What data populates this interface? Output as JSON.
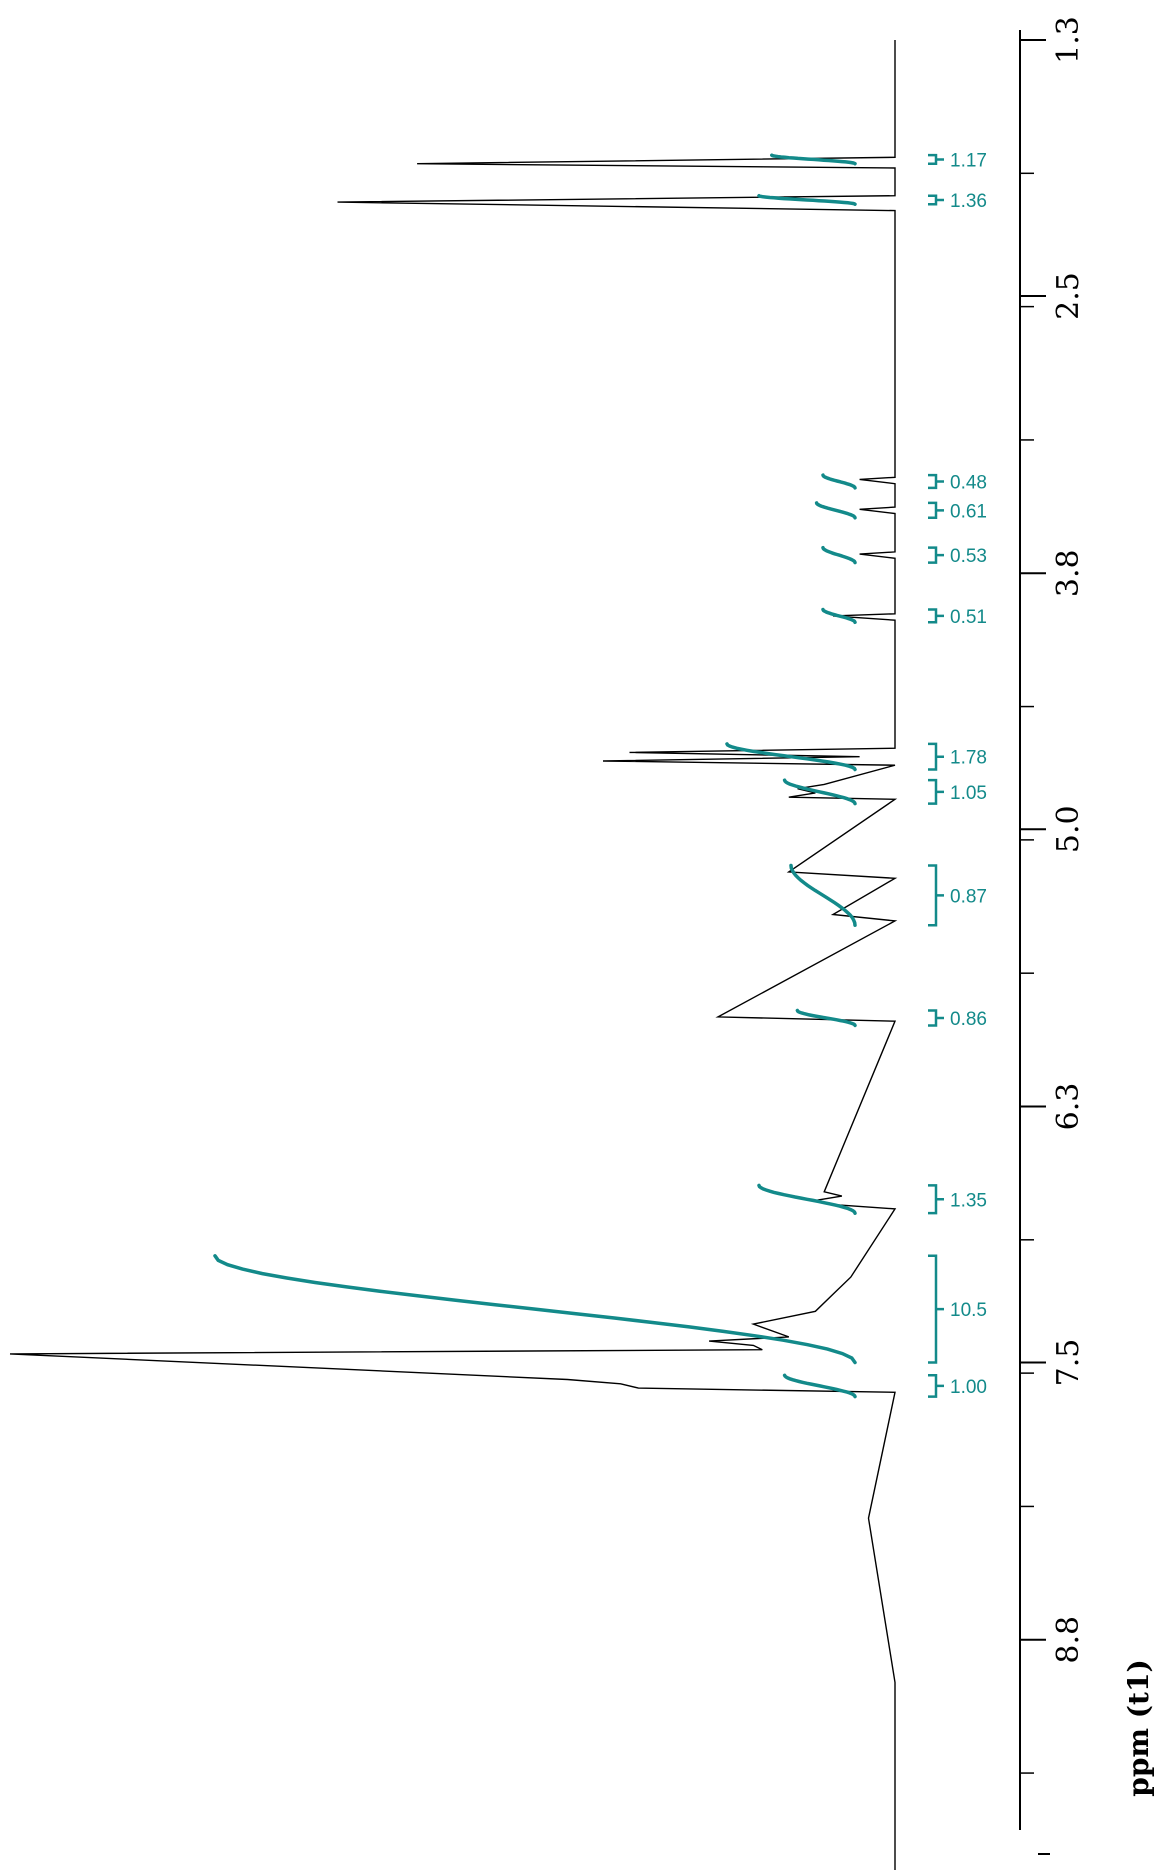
{
  "chart_data": {
    "type": "line",
    "title": "",
    "xlabel": "ppm (t1)",
    "ylabel": "",
    "xlim": [
      1.3,
      10.2
    ],
    "x_ticks": [
      "1.3",
      "2.5",
      "3.8",
      "5.0",
      "6.3",
      "7.5",
      "8.8"
    ],
    "x_tick_values": [
      1.3,
      2.5,
      3.8,
      5.0,
      6.3,
      7.5,
      8.8
    ],
    "series": [
      {
        "x": [
          1.3,
          1.85,
          1.88,
          1.9,
          2.03,
          2.06,
          2.1,
          2.5,
          3.35,
          3.36,
          3.38,
          3.49,
          3.5,
          3.52,
          3.7,
          3.71,
          3.73,
          3.99,
          4.0,
          4.02,
          4.62,
          4.64,
          4.66,
          4.68,
          4.7,
          4.79,
          4.81,
          4.83,
          4.85,
          4.86,
          5.2,
          5.23,
          5.4,
          5.43,
          5.88,
          5.9,
          6.7,
          6.72,
          6.74,
          6.76,
          6.78,
          7.1,
          7.18,
          7.26,
          7.32,
          7.38,
          7.4,
          7.42,
          7.44,
          7.46,
          7.58,
          7.6,
          7.62,
          7.64,
          8.23,
          9.0,
          10.2
        ],
        "y": [
          0.0,
          0.0,
          0.54,
          0.0,
          0.0,
          0.63,
          0.0,
          0.0,
          0.0,
          0.04,
          0.0,
          0.0,
          0.04,
          0.0,
          0.0,
          0.04,
          0.0,
          0.0,
          0.07,
          0.0,
          0.0,
          0.3,
          0.04,
          0.33,
          0.0,
          0.08,
          0.11,
          0.09,
          0.12,
          0.0,
          0.12,
          0.0,
          0.07,
          0.0,
          0.2,
          0.0,
          0.08,
          0.06,
          0.09,
          0.07,
          0.0,
          0.05,
          0.07,
          0.09,
          0.16,
          0.12,
          0.21,
          0.16,
          0.15,
          1.0,
          0.37,
          0.31,
          0.29,
          0.0,
          0.03,
          0.0,
          0.0
        ]
      }
    ],
    "integrals": [
      {
        "label": "1.17",
        "from": 1.84,
        "to": 1.88,
        "curve_start": 0.0,
        "curve_end": 0.13
      },
      {
        "label": "1.36",
        "from": 2.03,
        "to": 2.07,
        "curve_start": 0.0,
        "curve_end": 0.15
      },
      {
        "label": "0.48",
        "from": 3.34,
        "to": 3.4,
        "curve_start": 0.0,
        "curve_end": 0.05
      },
      {
        "label": "0.61",
        "from": 3.47,
        "to": 3.54,
        "curve_start": 0.0,
        "curve_end": 0.06
      },
      {
        "label": "0.53",
        "from": 3.68,
        "to": 3.75,
        "curve_start": 0.0,
        "curve_end": 0.05
      },
      {
        "label": "0.51",
        "from": 3.97,
        "to": 4.03,
        "curve_start": 0.0,
        "curve_end": 0.05
      },
      {
        "label": "1.78",
        "from": 4.6,
        "to": 4.72,
        "curve_start": 0.0,
        "curve_end": 0.2
      },
      {
        "label": "1.05",
        "from": 4.77,
        "to": 4.88,
        "curve_start": 0.0,
        "curve_end": 0.11
      },
      {
        "label": "0.87",
        "from": 5.17,
        "to": 5.45,
        "curve_start": 0.0,
        "curve_end": 0.1
      },
      {
        "label": "0.86",
        "from": 5.85,
        "to": 5.92,
        "curve_start": 0.0,
        "curve_end": 0.09
      },
      {
        "label": "1.35",
        "from": 6.67,
        "to": 6.8,
        "curve_start": 0.0,
        "curve_end": 0.15
      },
      {
        "label": "10.5",
        "from": 7.0,
        "to": 7.5,
        "curve_start": 0.0,
        "curve_end": 1.0
      },
      {
        "label": "1.00",
        "from": 7.56,
        "to": 7.66,
        "curve_start": 0.0,
        "curve_end": 0.11
      }
    ],
    "grid": false,
    "colors": {
      "spectrum": "#000000",
      "integral": "#138a8a"
    }
  }
}
